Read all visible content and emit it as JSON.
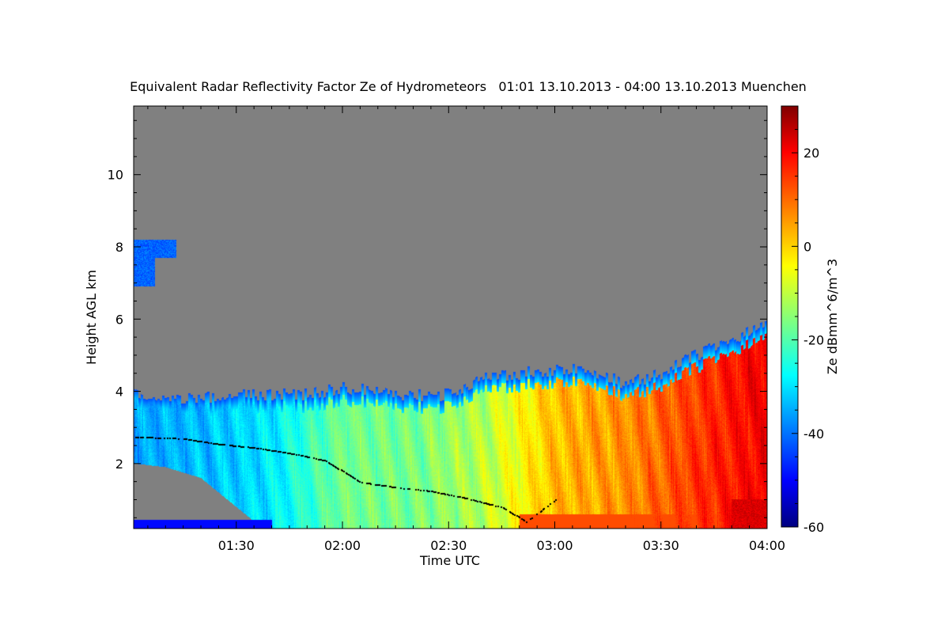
{
  "chart_data": {
    "type": "heatmap",
    "title": "Equivalent Radar Reflectivity Factor Ze of Hydrometeors   01:01 13.10.2013 - 04:00 13.10.2013 Muenchen",
    "xlabel": "Time UTC",
    "ylabel": "Height AGL km",
    "colorbar_label": "Ze dBmm^6/m^3",
    "xlim": [
      "01:01",
      "04:00"
    ],
    "ylim": [
      0.2,
      11.9
    ],
    "clim": [
      -60,
      30
    ],
    "x_ticks": [
      "01:30",
      "02:00",
      "02:30",
      "03:00",
      "03:30",
      "04:00"
    ],
    "y_ticks": [
      "2",
      "4",
      "6",
      "8",
      "10"
    ],
    "colorbar_ticks": [
      "-60",
      "-40",
      "-20",
      "0",
      "20"
    ],
    "colormap": "jet",
    "missing_color": "#808080",
    "echo_top_km": [
      [
        "01:01",
        3.9
      ],
      [
        "01:10",
        3.8
      ],
      [
        "01:20",
        3.8
      ],
      [
        "01:30",
        3.9
      ],
      [
        "01:40",
        3.9
      ],
      [
        "01:50",
        3.9
      ],
      [
        "02:00",
        4.1
      ],
      [
        "02:10",
        4.0
      ],
      [
        "02:20",
        3.9
      ],
      [
        "02:30",
        3.9
      ],
      [
        "02:35",
        4.1
      ],
      [
        "02:40",
        4.4
      ],
      [
        "02:50",
        4.5
      ],
      [
        "03:00",
        4.6
      ],
      [
        "03:10",
        4.6
      ],
      [
        "03:20",
        4.2
      ],
      [
        "03:30",
        4.5
      ],
      [
        "03:40",
        5.0
      ],
      [
        "03:50",
        5.4
      ],
      [
        "04:00",
        6.0
      ]
    ],
    "cloud_base_km": [
      [
        "01:01",
        2.0
      ],
      [
        "01:10",
        1.9
      ],
      [
        "01:20",
        1.6
      ],
      [
        "01:25",
        1.2
      ],
      [
        "01:30",
        0.8
      ],
      [
        "01:35",
        0.4
      ],
      [
        "01:40",
        0.25
      ]
    ],
    "upper_cloud": {
      "x_range": [
        "01:01",
        "01:13"
      ],
      "height_range_km": [
        6.9,
        8.2
      ]
    },
    "melting_layer_km": [
      [
        "01:01",
        2.75
      ],
      [
        "01:15",
        2.7
      ],
      [
        "01:25",
        2.55
      ],
      [
        "01:35",
        2.45
      ],
      [
        "01:45",
        2.3
      ],
      [
        "01:55",
        2.1
      ],
      [
        "02:05",
        1.5
      ],
      [
        "02:15",
        1.35
      ],
      [
        "02:25",
        1.25
      ],
      [
        "02:35",
        1.05
      ],
      [
        "02:45",
        0.8
      ],
      [
        "02:52",
        0.4
      ],
      [
        "03:00",
        1.0
      ]
    ],
    "profile_dbz": [
      [
        "01:01",
        -34
      ],
      [
        "01:20",
        -32
      ],
      [
        "01:40",
        -28
      ],
      [
        "02:00",
        -16
      ],
      [
        "02:20",
        -16
      ],
      [
        "02:40",
        -10
      ],
      [
        "03:00",
        2
      ],
      [
        "03:20",
        6
      ],
      [
        "03:40",
        14
      ],
      [
        "04:00",
        20
      ]
    ],
    "low_layer_km": 1.0
  }
}
